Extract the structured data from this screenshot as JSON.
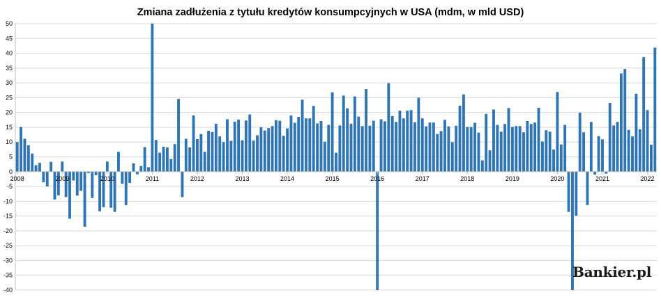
{
  "logo_text": "Bankier.pl",
  "chart_data": {
    "type": "bar",
    "title": "Zmiana zadłużenia z tytułu kredytów konsumpcyjnych w USA (mdm, w mld USD)",
    "xlabel": "",
    "ylabel": "",
    "ylim": [
      -40,
      50
    ],
    "yticks": [
      -40,
      -35,
      -30,
      -25,
      -20,
      -15,
      -10,
      -5,
      0,
      5,
      10,
      15,
      20,
      25,
      30,
      35,
      40,
      45,
      50
    ],
    "xtick_labels": [
      "2008",
      "2009",
      "2010",
      "2011",
      "2012",
      "2013",
      "2014",
      "2015",
      "2016",
      "2017",
      "2018",
      "2019",
      "2020",
      "2021",
      "2022"
    ],
    "grid": true,
    "bar_color": "#2e75b6",
    "values": [
      10.0,
      15.1,
      11.1,
      8.9,
      6.1,
      2.2,
      3.0,
      -3.6,
      -5.0,
      3.3,
      -9.4,
      -8.0,
      3.4,
      -8.6,
      -15.9,
      -3.0,
      -8.1,
      -6.5,
      -18.6,
      -0.5,
      -8.9,
      -1.2,
      -13.4,
      -12.0,
      3.4,
      -12.2,
      -13.6,
      6.7,
      -4.1,
      -11.3,
      -3.8,
      2.8,
      -0.9,
      1.9,
      8.3,
      1.5,
      50.0,
      10.7,
      6.4,
      8.4,
      8.2,
      4.3,
      9.3,
      24.6,
      -8.6,
      11.1,
      8.2,
      19.0,
      11.0,
      12.7,
      6.7,
      13.8,
      13.4,
      16.2,
      11.9,
      10.0,
      17.7,
      10.4,
      16.9,
      17.6,
      10.6,
      17.3,
      19.3,
      10.5,
      12.3,
      15.0,
      13.9,
      14.7,
      15.4,
      17.4,
      17.2,
      12.1,
      14.6,
      19.0,
      16.5,
      18.5,
      24.3,
      18.0,
      18.0,
      22.2,
      16.3,
      17.1,
      10.1,
      15.8,
      26.8,
      6.4,
      15.6,
      25.7,
      21.4,
      16.2,
      25.4,
      18.6,
      15.4,
      27.9,
      15.5,
      17.2,
      -40.0,
      17.7,
      17.0,
      29.9,
      18.8,
      16.8,
      20.6,
      18.0,
      20.6,
      20.8,
      16.7,
      25.0,
      18.0,
      15.3,
      16.6,
      16.6,
      12.7,
      13.7,
      17.5,
      15.3,
      10.0,
      15.5,
      22.3,
      26.1,
      15.1,
      15.1,
      16.5,
      13.2,
      3.8,
      19.5,
      7.2,
      21.0,
      15.8,
      13.5,
      16.1,
      21.5,
      15.1,
      15.4,
      15.4,
      13.3,
      17.1,
      16.1,
      16.6,
      21.6,
      10.2,
      14.0,
      13.5,
      7.5,
      26.9,
      9.2,
      15.8,
      -13.6,
      -40.0,
      -14.9,
      19.9,
      13.3,
      -11.3,
      16.8,
      -1.0,
      12.0,
      10.9,
      -0.7,
      23.2,
      15.6,
      16.8,
      33.2,
      34.7,
      14.1,
      11.9,
      26.3,
      14.3,
      38.7,
      20.8,
      9.1,
      41.9
    ]
  }
}
